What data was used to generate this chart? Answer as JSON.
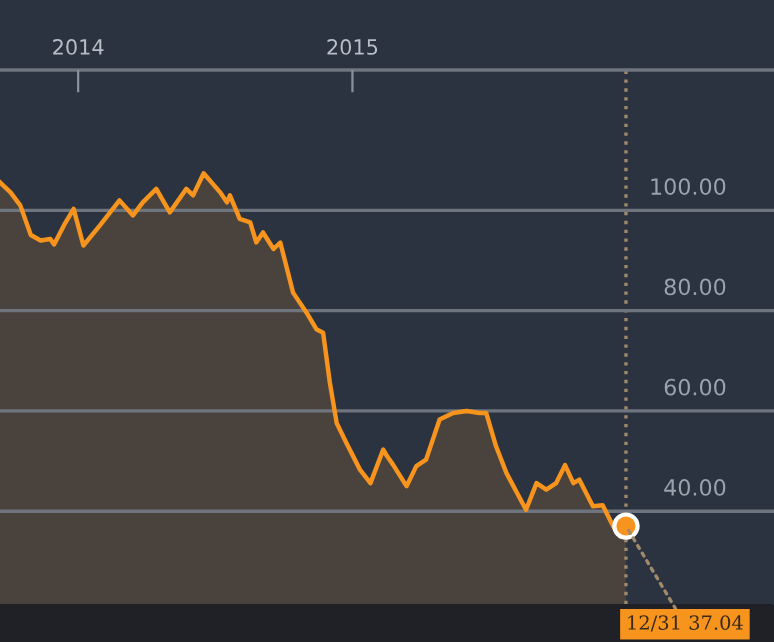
{
  "chart_data": {
    "type": "area",
    "x": [
      "2013-09-19",
      "2013-10-03",
      "2013-10-16",
      "2013-10-30",
      "2013-11-12",
      "2013-11-25",
      "2013-11-30",
      "2013-12-13",
      "2013-12-26",
      "2014-01-08",
      "2014-01-30",
      "2014-02-25",
      "2014-03-15",
      "2014-03-28",
      "2014-04-15",
      "2014-05-03",
      "2014-05-25",
      "2014-06-03",
      "2014-06-17",
      "2014-07-09",
      "2014-07-18",
      "2014-07-22",
      "2014-08-04",
      "2014-08-18",
      "2014-08-26",
      "2014-09-04",
      "2014-09-18",
      "2014-09-27",
      "2014-10-14",
      "2014-11-01",
      "2014-11-14",
      "2014-11-23",
      "2014-12-02",
      "2014-12-11",
      "2014-12-24",
      "2015-01-11",
      "2015-01-25",
      "2015-02-11",
      "2015-02-16",
      "2015-02-24",
      "2015-03-14",
      "2015-03-27",
      "2015-04-09",
      "2015-04-27",
      "2015-05-15",
      "2015-06-02",
      "2015-06-19",
      "2015-06-28",
      "2015-07-11",
      "2015-07-25",
      "2015-08-20",
      "2015-09-03",
      "2015-09-16",
      "2015-09-29",
      "2015-10-11",
      "2015-10-22",
      "2015-10-30",
      "2015-11-17",
      "2015-11-30",
      "2015-12-14",
      "2015-12-23",
      "2015-12-31"
    ],
    "series": [
      {
        "color": "#f7941d",
        "values": [
          105.6,
          103.6,
          101,
          95.1,
          94,
          94.3,
          93.2,
          97,
          100.3,
          93,
          97,
          102,
          99,
          101.6,
          104.3,
          99.6,
          104.3,
          103,
          107.4,
          103.6,
          101.6,
          103,
          98.3,
          97.6,
          93.6,
          95.6,
          92.3,
          93.6,
          83.6,
          79.6,
          76.3,
          75.6,
          65.6,
          57.6,
          53.6,
          48.3,
          45.6,
          52.3,
          51,
          49.3,
          45,
          49,
          50.3,
          58.3,
          59.6,
          60,
          59.6,
          59.6,
          53,
          47.6,
          40.3,
          45.6,
          44.3,
          45.6,
          49.2,
          45.6,
          46.3,
          41,
          41.2,
          37,
          35,
          37.04
        ]
      }
    ],
    "xlim": [
      "2013-09-19",
      "2016-07-15"
    ],
    "ylim": [
      21.5,
      128
    ],
    "xticks": [
      {
        "value": "2014-01-01",
        "label": "2014"
      },
      {
        "value": "2015-01-01",
        "label": "2015"
      }
    ],
    "yticks": [
      {
        "value": 40,
        "label": "40.00"
      },
      {
        "value": 60,
        "label": "60.00"
      },
      {
        "value": 80,
        "label": "80.00"
      },
      {
        "value": 100,
        "label": "100.00"
      }
    ],
    "grid": "y",
    "ref_lines": [
      {
        "axis": "x",
        "value": "2015-12-31",
        "color": "#a08a6a",
        "line_style": "dotted"
      }
    ],
    "annotations": [
      {
        "text": "12/31 37.04",
        "x": "2015-12-31",
        "y": 37.04
      }
    ]
  }
}
